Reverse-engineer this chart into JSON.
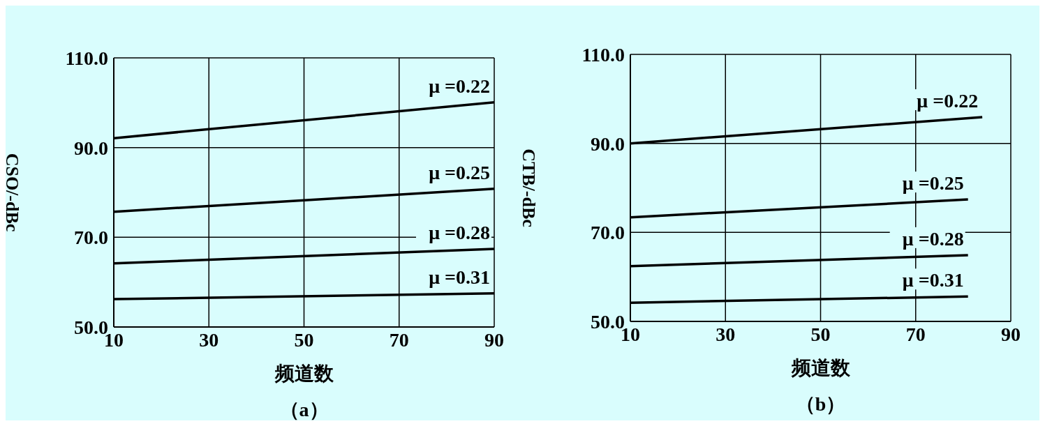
{
  "chart_data": [
    {
      "type": "line",
      "xlabel": "频道数",
      "ylabel": "CSO/-dBc",
      "annotations": [
        "（a）"
      ],
      "grid": true,
      "xlim": [
        10,
        90
      ],
      "xticks": [
        10,
        30,
        50,
        70,
        90
      ],
      "ylim": [
        50,
        110
      ],
      "yticks": [
        {
          "value": 50,
          "label": "50.0"
        },
        {
          "value": 70,
          "label": "70.0"
        },
        {
          "value": 90,
          "label": "90.0"
        },
        {
          "value": 110,
          "label": "110.0"
        }
      ],
      "x": [
        10,
        90
      ],
      "series": [
        {
          "name": "μ =0.22",
          "color": "#000000",
          "values": [
            92.1,
            100.1
          ]
        },
        {
          "name": "μ =0.25",
          "color": "#000000",
          "values": [
            75.7,
            80.8
          ]
        },
        {
          "name": "μ =0.28",
          "color": "#000000",
          "values": [
            64.2,
            67.4
          ]
        },
        {
          "name": "μ =0.31",
          "color": "#000000",
          "values": [
            56.2,
            57.5
          ]
        }
      ]
    },
    {
      "type": "line",
      "xlabel": "频道数",
      "ylabel": "CTB/-dBc",
      "annotations": [
        "（b）"
      ],
      "grid": true,
      "xlim": [
        10,
        90
      ],
      "xticks": [
        10,
        30,
        50,
        70,
        90
      ],
      "ylim": [
        50,
        110
      ],
      "yticks": [
        {
          "value": 50,
          "label": "50.0"
        },
        {
          "value": 70,
          "label": "70.0"
        },
        {
          "value": 90,
          "label": "90.0"
        },
        {
          "value": 110,
          "label": "110.0"
        }
      ],
      "series": [
        {
          "name": "μ =0.22",
          "color": "#000000",
          "x": [
            10,
            84
          ],
          "values": [
            90.0,
            95.9
          ]
        },
        {
          "name": "μ =0.25",
          "color": "#000000",
          "x": [
            10,
            81
          ],
          "values": [
            73.4,
            77.4
          ]
        },
        {
          "name": "μ =0.28",
          "color": "#000000",
          "x": [
            10,
            81
          ],
          "values": [
            62.4,
            64.9
          ]
        },
        {
          "name": "μ =0.31",
          "color": "#000000",
          "x": [
            10,
            81
          ],
          "values": [
            54.2,
            55.6
          ]
        }
      ]
    }
  ]
}
